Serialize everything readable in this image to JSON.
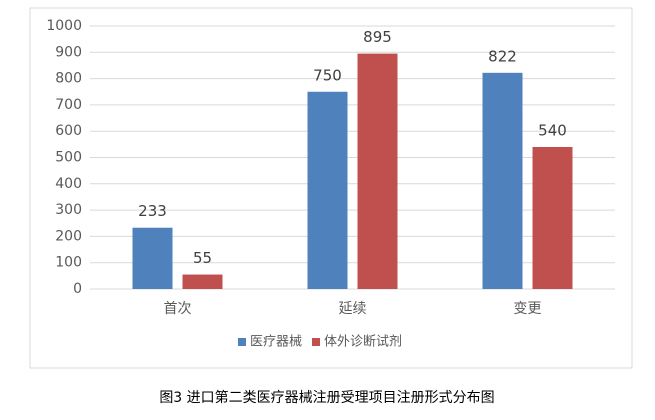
{
  "chart_data": {
    "type": "bar",
    "categories": [
      "首次",
      "延续",
      "变更"
    ],
    "series": [
      {
        "name": "医疗器械",
        "color": "#4f81bd",
        "values": [
          233,
          750,
          822
        ]
      },
      {
        "name": "体外诊断试剂",
        "color": "#c0504d",
        "values": [
          55,
          895,
          540
        ]
      }
    ],
    "ylim": [
      0,
      1000
    ],
    "yticks": [
      0,
      100,
      200,
      300,
      400,
      500,
      600,
      700,
      800,
      900,
      1000
    ],
    "grid": true,
    "legend": "bottom",
    "caption": "图3 进口第二类医疗器械注册受理项目注册形式分布图"
  }
}
